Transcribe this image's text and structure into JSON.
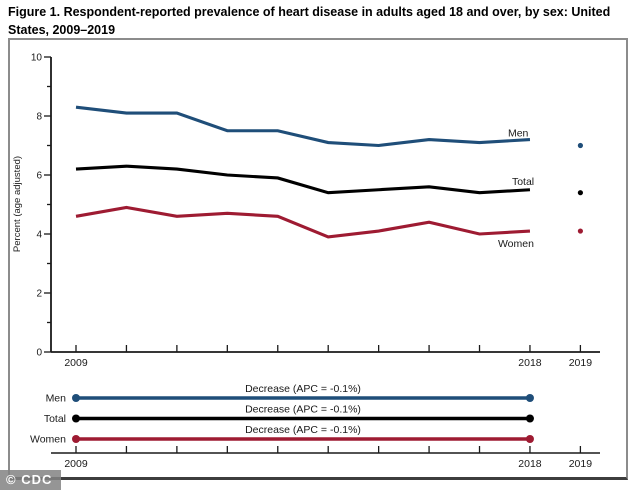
{
  "figure": {
    "title": "Figure 1. Respondent-reported prevalence of heart disease in adults aged 18 and over, by sex: United States, 2009–2019",
    "watermark": "© CDC"
  },
  "chart_data": [
    {
      "type": "line",
      "title": "Figure 1. Respondent-reported prevalence of heart disease in adults aged 18 and over, by sex: United States, 2009–2019",
      "ylabel": "Percent (age adjusted)",
      "ylim": [
        0,
        10
      ],
      "yticks": [
        0,
        2,
        4,
        6,
        8,
        10
      ],
      "grid": false,
      "legend_position": "line-end-labels",
      "x": [
        2009,
        2010,
        2011,
        2012,
        2013,
        2014,
        2015,
        2016,
        2017,
        2018
      ],
      "x_labeled_ticks": [
        2009,
        2018,
        2019
      ],
      "series": [
        {
          "name": "Men",
          "color": "#1F4E79",
          "values": [
            8.3,
            8.1,
            8.1,
            7.5,
            7.5,
            7.1,
            7.0,
            7.2,
            7.1,
            7.2
          ],
          "point_2019": 7.0
        },
        {
          "name": "Total",
          "color": "#000000",
          "values": [
            6.2,
            6.3,
            6.2,
            6.0,
            5.9,
            5.4,
            5.5,
            5.6,
            5.4,
            5.5
          ],
          "point_2019": 5.4
        },
        {
          "name": "Women",
          "color": "#9E1B32",
          "values": [
            4.6,
            4.9,
            4.6,
            4.7,
            4.6,
            3.9,
            4.1,
            4.4,
            4.0,
            4.1
          ],
          "point_2019": 4.1
        }
      ]
    },
    {
      "type": "trend-summary",
      "rows": [
        {
          "name": "Men",
          "annotation": "Decrease (APC = -0.1%)",
          "color": "#1F4E79",
          "span_years": [
            2009,
            2018
          ]
        },
        {
          "name": "Total",
          "annotation": "Decrease (APC = -0.1%)",
          "color": "#000000",
          "span_years": [
            2009,
            2018
          ]
        },
        {
          "name": "Women",
          "annotation": "Decrease (APC = -0.1%)",
          "color": "#9E1B32",
          "span_years": [
            2009,
            2018
          ]
        }
      ],
      "x_labeled_ticks": [
        2009,
        2018,
        2019
      ]
    }
  ]
}
